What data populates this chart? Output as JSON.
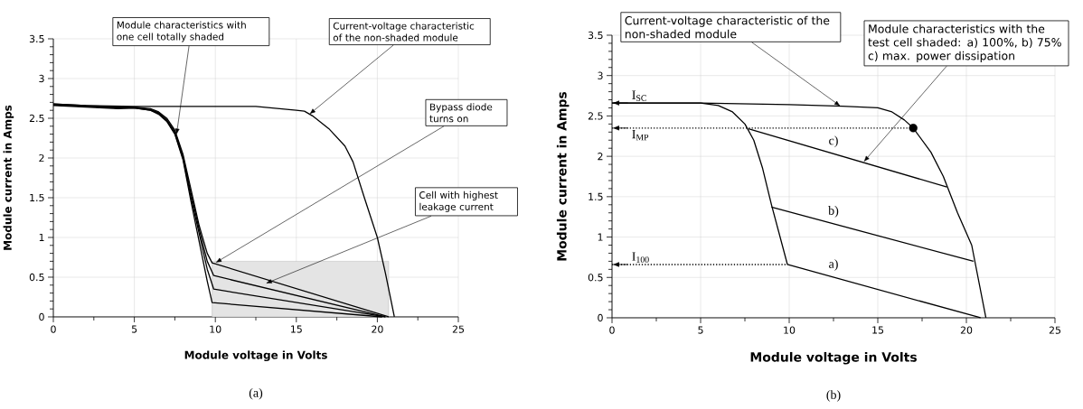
{
  "chart_data": [
    {
      "type": "line",
      "xlabel": "Module voltage in Volts",
      "ylabel": "Module current in Amps",
      "xlim": [
        0,
        25
      ],
      "ylim": [
        0,
        3.5
      ],
      "xticks": [
        0,
        5,
        10,
        15,
        20,
        25
      ],
      "yticks": [
        0,
        0.5,
        1,
        1.5,
        2,
        2.5,
        3,
        3.5
      ],
      "grid": true,
      "series": [
        {
          "type": "area",
          "color": "#e4e4e4",
          "x": [
            9.8,
            20.7
          ],
          "values": [
            0.7,
            0.7
          ]
        },
        {
          "color": "#000000",
          "x": [
            0,
            2,
            5,
            10,
            12.5,
            15,
            15.5,
            16,
            17,
            18,
            18.5,
            19.2,
            20,
            20.5,
            21.05
          ],
          "values": [
            2.68,
            2.66,
            2.65,
            2.65,
            2.65,
            2.6,
            2.59,
            2.53,
            2.37,
            2.15,
            1.95,
            1.5,
            1.0,
            0.55,
            0
          ]
        },
        {
          "color": "#000000",
          "x": [
            0,
            4,
            5,
            6,
            6.5,
            7,
            7.5,
            8,
            8.5,
            9,
            9.5,
            9.8,
            20.7
          ],
          "values": [
            2.68,
            2.64,
            2.64,
            2.62,
            2.58,
            2.5,
            2.35,
            2.05,
            1.6,
            1.15,
            0.8,
            0.68,
            0
          ]
        },
        {
          "color": "#000000",
          "x": [
            0,
            4,
            5,
            6,
            6.5,
            7,
            7.5,
            8,
            8.5,
            9,
            9.5,
            9.9,
            20.5
          ],
          "values": [
            2.67,
            2.63,
            2.64,
            2.61,
            2.57,
            2.48,
            2.33,
            2.02,
            1.55,
            1.1,
            0.7,
            0.52,
            0
          ]
        },
        {
          "color": "#000000",
          "x": [
            0,
            4,
            5,
            6,
            6.5,
            7,
            7.5,
            8,
            8.5,
            9,
            9.5,
            9.9,
            20.5
          ],
          "values": [
            2.67,
            2.63,
            2.63,
            2.6,
            2.56,
            2.47,
            2.31,
            2.0,
            1.5,
            1.05,
            0.6,
            0.35,
            0
          ]
        },
        {
          "color": "#000000",
          "x": [
            0,
            4,
            5,
            6,
            6.5,
            7,
            7.5,
            8,
            8.5,
            9,
            9.5,
            9.8,
            20.3
          ],
          "values": [
            2.66,
            2.62,
            2.63,
            2.6,
            2.55,
            2.46,
            2.3,
            1.98,
            1.45,
            0.95,
            0.45,
            0.18,
            0
          ]
        }
      ],
      "annotations": [
        {
          "text": "Module characteristics with one cell totally shaded",
          "x": 7.6,
          "y": 2.29
        },
        {
          "text": "Current-voltage characteristic of the non-shaded module",
          "x": 15.8,
          "y": 2.55
        },
        {
          "text": "Bypass diode turns on",
          "x": 10,
          "y": 0.68
        },
        {
          "text": "Cell with highest leakage current",
          "x": 13.1,
          "y": 0.42
        },
        "(a)"
      ]
    },
    {
      "type": "line",
      "xlabel": "Module voltage in Volts",
      "ylabel": "Module current in Amps",
      "xlim": [
        0,
        25
      ],
      "ylim": [
        0,
        3.5
      ],
      "xticks": [
        0,
        5,
        10,
        15,
        20,
        25
      ],
      "yticks": [
        0,
        0.5,
        1,
        1.5,
        2,
        2.5,
        3,
        3.5
      ],
      "grid": true,
      "series": [
        {
          "color": "#000000",
          "x": [
            0,
            5,
            10,
            13,
            15,
            15.8,
            16.5,
            17,
            18,
            18.7,
            19.5,
            20.3,
            21.1
          ],
          "values": [
            2.66,
            2.66,
            2.64,
            2.62,
            2.6,
            2.55,
            2.45,
            2.35,
            2.05,
            1.75,
            1.3,
            0.9,
            0
          ]
        },
        {
          "color": "#000000",
          "x": [
            0,
            5,
            6,
            6.8,
            7.5,
            8,
            8.5,
            9,
            9.9,
            20.8
          ],
          "values": [
            2.66,
            2.66,
            2.63,
            2.55,
            2.4,
            2.2,
            1.85,
            1.4,
            0.66,
            0
          ]
        },
        {
          "color": "#000000",
          "x": [
            9.0,
            20.4
          ],
          "values": [
            1.37,
            0.7
          ]
        },
        {
          "color": "#000000",
          "x": [
            7.7,
            18.9
          ],
          "values": [
            2.34,
            1.62
          ]
        },
        {
          "color": "#000000",
          "line_style": "dotted",
          "x": [
            0,
            16.9
          ],
          "values": [
            2.35,
            2.35
          ]
        },
        {
          "color": "#000000",
          "line_style": "dotted",
          "x": [
            0,
            9.9
          ],
          "values": [
            0.66,
            0.66
          ]
        },
        {
          "type": "scatter",
          "color": "#000000",
          "x": [
            17
          ],
          "values": [
            2.35
          ]
        }
      ],
      "annotations": [
        {
          "text": "Current-voltage characteristic of the non-shaded module",
          "x": 12.9,
          "y": 2.62
        },
        {
          "text": "Module characteristics with the test cell shaded: a) 100%, b) 75% c) max. power dissipation",
          "x": 14.2,
          "y": 1.93
        },
        {
          "text": "I$_{SC}$",
          "x": 0,
          "y": 2.66
        },
        {
          "text": "I$_{MP}$",
          "x": 0,
          "y": 2.35
        },
        {
          "text": "I$_{100}$",
          "x": 0,
          "y": 0.66
        },
        {
          "text": "a)",
          "x": 12.5,
          "y": 0.503
        },
        {
          "text": "b)",
          "x": 12.5,
          "y": 1.164
        },
        {
          "text": "c)",
          "x": 12.5,
          "y": 2.031
        },
        "(b)"
      ]
    }
  ]
}
